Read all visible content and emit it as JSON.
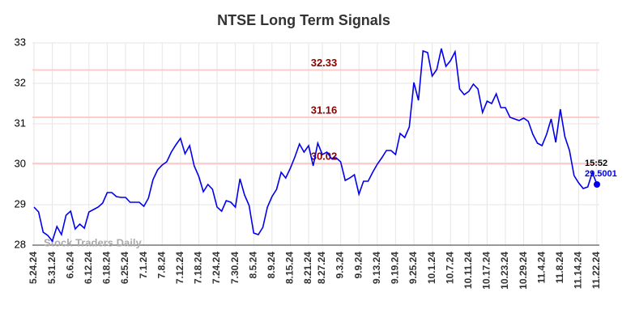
{
  "chart_data": {
    "type": "line",
    "title": "NTSE Long Term Signals",
    "watermark": "Stock Traders Daily",
    "categories": [
      "5.24.24",
      null,
      null,
      null,
      "5.31.24",
      null,
      null,
      null,
      "6.6.24",
      null,
      null,
      null,
      "6.12.24",
      null,
      null,
      null,
      "6.18.24",
      null,
      null,
      null,
      "6.25.24",
      null,
      null,
      null,
      "7.1.24",
      null,
      null,
      null,
      "7.8.24",
      null,
      null,
      null,
      "7.12.24",
      null,
      null,
      null,
      "7.18.24",
      null,
      null,
      null,
      "7.24.24",
      null,
      null,
      null,
      "7.30.24",
      null,
      null,
      null,
      "8.5.24",
      null,
      null,
      null,
      "8.9.24",
      null,
      null,
      null,
      "8.15.24",
      null,
      null,
      null,
      "8.21.24",
      null,
      null,
      "8.27.24",
      null,
      null,
      null,
      "9.3.24",
      null,
      null,
      null,
      "9.9.24",
      null,
      null,
      null,
      "9.13.24",
      null,
      null,
      null,
      "9.19.24",
      null,
      null,
      null,
      "9.25.24",
      null,
      null,
      null,
      "10.1.24",
      null,
      null,
      null,
      "10.7.24",
      null,
      null,
      null,
      "10.11.24",
      null,
      null,
      null,
      "10.17.24",
      null,
      null,
      null,
      "10.23.24",
      null,
      null,
      null,
      "10.29.24",
      null,
      null,
      null,
      "11.4.24",
      null,
      null,
      null,
      "11.8.24",
      null,
      null,
      null,
      "11.14.24",
      null,
      null,
      null,
      "11.22.24"
    ],
    "series": [
      {
        "color": "#0000ee",
        "values": [
          28.94,
          28.82,
          28.32,
          28.24,
          28.1,
          28.46,
          28.26,
          28.74,
          28.84,
          28.4,
          28.52,
          28.42,
          28.82,
          28.88,
          28.94,
          29.04,
          29.3,
          29.3,
          29.2,
          29.18,
          29.18,
          29.06,
          29.06,
          29.06,
          28.96,
          29.16,
          29.62,
          29.86,
          29.98,
          30.06,
          30.3,
          30.48,
          30.64,
          30.26,
          30.46,
          29.96,
          29.7,
          29.32,
          29.5,
          29.38,
          28.94,
          28.84,
          29.1,
          29.06,
          28.94,
          29.64,
          29.24,
          28.98,
          28.3,
          28.26,
          28.44,
          28.94,
          29.2,
          29.38,
          29.8,
          29.66,
          29.9,
          30.18,
          30.5,
          30.3,
          30.46,
          29.96,
          30.52,
          30.24,
          30.3,
          30.14,
          30.16,
          30.06,
          29.6,
          29.66,
          29.74,
          29.26,
          29.58,
          29.58,
          29.8,
          30,
          30.16,
          30.34,
          30.34,
          30.24,
          30.76,
          30.66,
          30.92,
          32.02,
          31.58,
          32.8,
          32.76,
          32.18,
          32.34,
          32.86,
          32.42,
          32.56,
          32.78,
          31.86,
          31.72,
          31.8,
          31.98,
          31.86,
          31.28,
          31.56,
          31.5,
          31.74,
          31.4,
          31.4,
          31.16,
          31.12,
          31.08,
          31.14,
          31.06,
          30.74,
          30.52,
          30.46,
          30.74,
          31.12,
          30.54,
          31.36,
          30.68,
          30.34,
          29.72,
          29.54,
          29.4,
          29.44,
          29.8,
          29.5001
        ]
      }
    ],
    "hlines": [
      {
        "value": 32.33,
        "color": "#ffcccc"
      },
      {
        "value": 31.16,
        "color": "#ffcccc"
      },
      {
        "value": 30.02,
        "color": "#ffcccc"
      }
    ],
    "last_label": {
      "time": "15:52",
      "value": 29.5001
    },
    "ylim": [
      28,
      33
    ],
    "yticks": [
      28,
      29,
      30,
      31,
      32,
      33
    ],
    "grid": true
  }
}
